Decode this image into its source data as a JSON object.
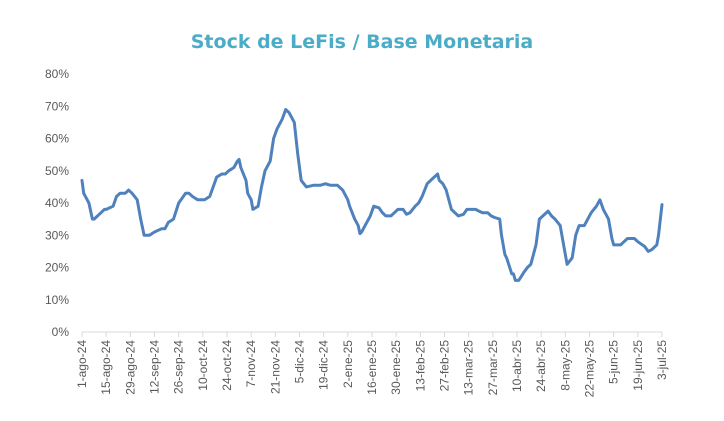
{
  "chart_data": {
    "type": "line",
    "title": "Stock de LeFis / Base Monetaria",
    "xlabel": "",
    "ylabel": "",
    "ylim": [
      0,
      80
    ],
    "y_ticks": [
      "0%",
      "10%",
      "20%",
      "30%",
      "40%",
      "50%",
      "60%",
      "70%",
      "80%"
    ],
    "x_ticks": [
      "1-ago-24",
      "15-ago-24",
      "29-ago-24",
      "12-sep-24",
      "26-sep-24",
      "10-oct-24",
      "24-oct-24",
      "7-nov-24",
      "21-nov-24",
      "5-dic-24",
      "19-dic-24",
      "2-ene-25",
      "16-ene-25",
      "30-ene-25",
      "13-feb-25",
      "27-feb-25",
      "13-mar-25",
      "27-mar-25",
      "10-abr-25",
      "24-abr-25",
      "8-may-25",
      "22-may-25",
      "5-jun-25",
      "19-jun-25",
      "3-jul-25"
    ],
    "grid": false,
    "legend": "none",
    "series": [
      {
        "color": "#4f81bd",
        "points": [
          [
            "1-ago-24",
            47
          ],
          [
            "2-ago-24",
            43
          ],
          [
            "5-ago-24",
            40
          ],
          [
            "7-ago-24",
            35
          ],
          [
            "8-ago-24",
            35
          ],
          [
            "12-ago-24",
            37
          ],
          [
            "14-ago-24",
            38
          ],
          [
            "15-ago-24",
            38
          ],
          [
            "19-ago-24",
            39
          ],
          [
            "21-ago-24",
            42
          ],
          [
            "23-ago-24",
            43
          ],
          [
            "26-ago-24",
            43
          ],
          [
            "28-ago-24",
            44
          ],
          [
            "30-ago-24",
            43
          ],
          [
            "2-sep-24",
            41
          ],
          [
            "4-sep-24",
            35
          ],
          [
            "6-sep-24",
            30
          ],
          [
            "9-sep-24",
            30
          ],
          [
            "12-sep-24",
            31
          ],
          [
            "16-sep-24",
            32
          ],
          [
            "18-sep-24",
            32
          ],
          [
            "20-sep-24",
            34
          ],
          [
            "23-sep-24",
            35
          ],
          [
            "26-sep-24",
            40
          ],
          [
            "30-sep-24",
            43
          ],
          [
            "2-oct-24",
            43
          ],
          [
            "4-oct-24",
            42
          ],
          [
            "7-oct-24",
            41
          ],
          [
            "9-oct-24",
            41
          ],
          [
            "11-oct-24",
            41
          ],
          [
            "14-oct-24",
            42
          ],
          [
            "16-oct-24",
            45
          ],
          [
            "18-oct-24",
            48
          ],
          [
            "21-oct-24",
            49
          ],
          [
            "23-oct-24",
            49
          ],
          [
            "25-oct-24",
            50
          ],
          [
            "28-oct-24",
            51
          ],
          [
            "30-oct-24",
            53
          ],
          [
            "31-oct-24",
            53.5
          ],
          [
            "1-nov-24",
            51
          ],
          [
            "4-nov-24",
            47
          ],
          [
            "5-nov-24",
            43
          ],
          [
            "7-nov-24",
            41
          ],
          [
            "8-nov-24",
            38
          ],
          [
            "11-nov-24",
            39
          ],
          [
            "13-nov-24",
            45
          ],
          [
            "15-nov-24",
            50
          ],
          [
            "18-nov-24",
            53
          ],
          [
            "20-nov-24",
            60
          ],
          [
            "22-nov-24",
            63
          ],
          [
            "25-nov-24",
            66
          ],
          [
            "27-nov-24",
            69
          ],
          [
            "29-nov-24",
            68
          ],
          [
            "2-dic-24",
            65
          ],
          [
            "4-dic-24",
            55
          ],
          [
            "6-dic-24",
            47
          ],
          [
            "9-dic-24",
            45
          ],
          [
            "13-dic-24",
            45.5
          ],
          [
            "17-dic-24",
            45.5
          ],
          [
            "20-dic-24",
            46
          ],
          [
            "23-dic-24",
            45.5
          ],
          [
            "27-dic-24",
            45.5
          ],
          [
            "30-dic-24",
            44
          ],
          [
            "2-ene-25",
            41
          ],
          [
            "3-ene-25",
            39
          ],
          [
            "6-ene-25",
            35
          ],
          [
            "8-ene-25",
            33
          ],
          [
            "9-ene-25",
            30.5
          ],
          [
            "10-ene-25",
            31
          ],
          [
            "13-ene-25",
            34
          ],
          [
            "15-ene-25",
            36
          ],
          [
            "17-ene-25",
            39
          ],
          [
            "20-ene-25",
            38.5
          ],
          [
            "22-ene-25",
            37
          ],
          [
            "24-ene-25",
            36
          ],
          [
            "27-ene-25",
            36
          ],
          [
            "29-ene-25",
            37
          ],
          [
            "31-ene-25",
            38
          ],
          [
            "3-feb-25",
            38
          ],
          [
            "5-feb-25",
            36.5
          ],
          [
            "7-feb-25",
            37
          ],
          [
            "10-feb-25",
            39
          ],
          [
            "12-feb-25",
            40
          ],
          [
            "14-feb-25",
            42
          ],
          [
            "17-feb-25",
            46
          ],
          [
            "19-feb-25",
            47
          ],
          [
            "21-feb-25",
            48
          ],
          [
            "23-feb-25",
            49
          ],
          [
            "24-feb-25",
            47
          ],
          [
            "26-feb-25",
            46
          ],
          [
            "28-feb-25",
            44
          ],
          [
            "3-mar-25",
            38
          ],
          [
            "5-mar-25",
            37
          ],
          [
            "7-mar-25",
            36
          ],
          [
            "10-mar-25",
            36.5
          ],
          [
            "12-mar-25",
            38
          ],
          [
            "14-mar-25",
            38
          ],
          [
            "17-mar-25",
            38
          ],
          [
            "19-mar-25",
            37.5
          ],
          [
            "21-mar-25",
            37
          ],
          [
            "24-mar-25",
            37
          ],
          [
            "26-mar-25",
            36
          ],
          [
            "28-mar-25",
            35.5
          ],
          [
            "31-mar-25",
            35
          ],
          [
            "1-abr-25",
            30
          ],
          [
            "3-abr-25",
            24
          ],
          [
            "4-abr-25",
            23
          ],
          [
            "7-abr-25",
            18
          ],
          [
            "8-abr-25",
            18
          ],
          [
            "9-abr-25",
            16
          ],
          [
            "11-abr-25",
            16
          ],
          [
            "14-abr-25",
            18.5
          ],
          [
            "16-abr-25",
            20
          ],
          [
            "18-abr-25",
            21
          ],
          [
            "21-abr-25",
            27
          ],
          [
            "23-abr-25",
            35
          ],
          [
            "25-abr-25",
            36
          ],
          [
            "28-abr-25",
            37.5
          ],
          [
            "30-abr-25",
            36
          ],
          [
            "2-may-25",
            35
          ],
          [
            "5-may-25",
            33
          ],
          [
            "7-may-25",
            27
          ],
          [
            "9-may-25",
            21
          ],
          [
            "12-may-25",
            23
          ],
          [
            "14-may-25",
            30
          ],
          [
            "16-may-25",
            33
          ],
          [
            "19-may-25",
            33
          ],
          [
            "21-may-25",
            35
          ],
          [
            "23-may-25",
            37
          ],
          [
            "26-may-25",
            39
          ],
          [
            "28-may-25",
            41
          ],
          [
            "30-may-25",
            38
          ],
          [
            "2-jun-25",
            35
          ],
          [
            "4-jun-25",
            29
          ],
          [
            "5-jun-25",
            27
          ],
          [
            "9-jun-25",
            27
          ],
          [
            "11-jun-25",
            28
          ],
          [
            "13-jun-25",
            29
          ],
          [
            "17-jun-25",
            29
          ],
          [
            "19-jun-25",
            28
          ],
          [
            "23-jun-25",
            26.5
          ],
          [
            "25-jun-25",
            25
          ],
          [
            "27-jun-25",
            25.5
          ],
          [
            "30-jun-25",
            27
          ],
          [
            "1-jul-25",
            30
          ],
          [
            "3-jul-25",
            39.5
          ]
        ]
      }
    ]
  }
}
